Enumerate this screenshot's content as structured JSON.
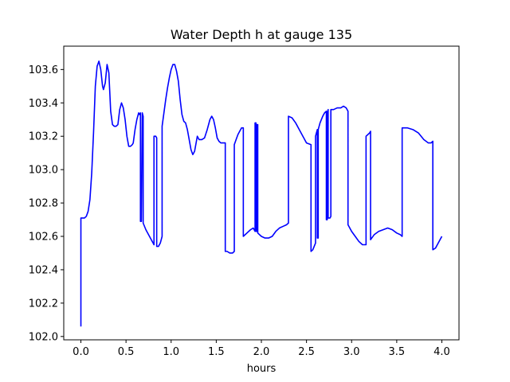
{
  "chart_data": {
    "type": "line",
    "title": "Water Depth h at gauge 135",
    "xlabel": "hours",
    "ylabel": "",
    "xlim": [
      -0.19,
      4.19
    ],
    "ylim": [
      101.98,
      103.74
    ],
    "xticks": [
      0.0,
      0.5,
      1.0,
      1.5,
      2.0,
      2.5,
      3.0,
      3.5,
      4.0
    ],
    "yticks": [
      102.0,
      102.2,
      102.4,
      102.6,
      102.8,
      103.0,
      103.2,
      103.4,
      103.6
    ],
    "xtick_labels": [
      "0.0",
      "0.5",
      "1.0",
      "1.5",
      "2.0",
      "2.5",
      "3.0",
      "3.5",
      "4.0"
    ],
    "ytick_labels": [
      "102.0",
      "102.2",
      "102.4",
      "102.6",
      "102.8",
      "103.0",
      "103.2",
      "103.4",
      "103.6"
    ],
    "grid": false,
    "legend": "none",
    "series": [
      {
        "color": "#0000ff",
        "points": [
          [
            0.0,
            102.06
          ],
          [
            0.0,
            102.71
          ],
          [
            0.02,
            102.71
          ],
          [
            0.04,
            102.71
          ],
          [
            0.06,
            102.72
          ],
          [
            0.08,
            102.75
          ],
          [
            0.1,
            102.82
          ],
          [
            0.12,
            102.98
          ],
          [
            0.14,
            103.22
          ],
          [
            0.16,
            103.5
          ],
          [
            0.18,
            103.62
          ],
          [
            0.2,
            103.65
          ],
          [
            0.22,
            103.6
          ],
          [
            0.24,
            103.5
          ],
          [
            0.25,
            103.48
          ],
          [
            0.27,
            103.52
          ],
          [
            0.29,
            103.63
          ],
          [
            0.31,
            103.58
          ],
          [
            0.33,
            103.35
          ],
          [
            0.35,
            103.27
          ],
          [
            0.37,
            103.26
          ],
          [
            0.39,
            103.26
          ],
          [
            0.41,
            103.27
          ],
          [
            0.43,
            103.36
          ],
          [
            0.45,
            103.4
          ],
          [
            0.47,
            103.37
          ],
          [
            0.49,
            103.3
          ],
          [
            0.51,
            103.2
          ],
          [
            0.53,
            103.14
          ],
          [
            0.55,
            103.14
          ],
          [
            0.57,
            103.15
          ],
          [
            0.58,
            103.16
          ],
          [
            0.58,
            103.16
          ],
          [
            0.6,
            103.24
          ],
          [
            0.62,
            103.3
          ],
          [
            0.64,
            103.34
          ],
          [
            0.65,
            103.33
          ],
          [
            0.66,
            103.34
          ],
          [
            0.66,
            102.69
          ],
          [
            0.67,
            102.69
          ],
          [
            0.68,
            103.34
          ],
          [
            0.69,
            103.32
          ],
          [
            0.69,
            102.68
          ],
          [
            0.72,
            102.64
          ],
          [
            0.76,
            102.6
          ],
          [
            0.8,
            102.56
          ],
          [
            0.81,
            102.55
          ],
          [
            0.81,
            103.2
          ],
          [
            0.83,
            103.2
          ],
          [
            0.84,
            103.19
          ],
          [
            0.84,
            102.54
          ],
          [
            0.86,
            102.54
          ],
          [
            0.88,
            102.56
          ],
          [
            0.9,
            102.6
          ],
          [
            0.9,
            103.26
          ],
          [
            0.92,
            103.34
          ],
          [
            0.94,
            103.42
          ],
          [
            0.96,
            103.49
          ],
          [
            0.98,
            103.55
          ],
          [
            1.0,
            103.6
          ],
          [
            1.02,
            103.63
          ],
          [
            1.04,
            103.63
          ],
          [
            1.06,
            103.59
          ],
          [
            1.08,
            103.53
          ],
          [
            1.1,
            103.42
          ],
          [
            1.12,
            103.33
          ],
          [
            1.14,
            103.29
          ],
          [
            1.16,
            103.28
          ],
          [
            1.18,
            103.24
          ],
          [
            1.2,
            103.18
          ],
          [
            1.22,
            103.12
          ],
          [
            1.24,
            103.09
          ],
          [
            1.26,
            103.11
          ],
          [
            1.28,
            103.17
          ],
          [
            1.29,
            103.2
          ],
          [
            1.31,
            103.18
          ],
          [
            1.34,
            103.18
          ],
          [
            1.37,
            103.19
          ],
          [
            1.4,
            103.24
          ],
          [
            1.43,
            103.3
          ],
          [
            1.45,
            103.32
          ],
          [
            1.47,
            103.3
          ],
          [
            1.49,
            103.25
          ],
          [
            1.51,
            103.19
          ],
          [
            1.53,
            103.17
          ],
          [
            1.55,
            103.16
          ],
          [
            1.58,
            103.16
          ],
          [
            1.6,
            103.16
          ],
          [
            1.6,
            102.51
          ],
          [
            1.62,
            102.51
          ],
          [
            1.65,
            102.5
          ],
          [
            1.68,
            102.5
          ],
          [
            1.7,
            102.51
          ],
          [
            1.7,
            103.15
          ],
          [
            1.72,
            103.18
          ],
          [
            1.74,
            103.21
          ],
          [
            1.76,
            103.23
          ],
          [
            1.78,
            103.25
          ],
          [
            1.8,
            103.25
          ],
          [
            1.8,
            102.6
          ],
          [
            1.84,
            102.62
          ],
          [
            1.88,
            102.64
          ],
          [
            1.91,
            102.65
          ],
          [
            1.93,
            102.63
          ],
          [
            1.93,
            103.28
          ],
          [
            1.94,
            103.28
          ],
          [
            1.94,
            102.63
          ],
          [
            1.95,
            102.63
          ],
          [
            1.95,
            103.27
          ],
          [
            1.96,
            103.27
          ],
          [
            1.96,
            102.62
          ],
          [
            2.0,
            102.6
          ],
          [
            2.04,
            102.59
          ],
          [
            2.08,
            102.59
          ],
          [
            2.12,
            102.6
          ],
          [
            2.16,
            102.63
          ],
          [
            2.2,
            102.65
          ],
          [
            2.24,
            102.66
          ],
          [
            2.28,
            102.67
          ],
          [
            2.3,
            102.68
          ],
          [
            2.3,
            103.32
          ],
          [
            2.34,
            103.31
          ],
          [
            2.38,
            103.28
          ],
          [
            2.42,
            103.24
          ],
          [
            2.46,
            103.2
          ],
          [
            2.5,
            103.16
          ],
          [
            2.55,
            103.15
          ],
          [
            2.55,
            102.51
          ],
          [
            2.57,
            102.52
          ],
          [
            2.6,
            102.56
          ],
          [
            2.6,
            103.2
          ],
          [
            2.61,
            103.22
          ],
          [
            2.62,
            103.24
          ],
          [
            2.62,
            102.59
          ],
          [
            2.63,
            102.59
          ],
          [
            2.63,
            103.24
          ],
          [
            2.65,
            103.28
          ],
          [
            2.68,
            103.32
          ],
          [
            2.7,
            103.34
          ],
          [
            2.72,
            103.35
          ],
          [
            2.72,
            102.7
          ],
          [
            2.73,
            102.7
          ],
          [
            2.73,
            103.34
          ],
          [
            2.74,
            103.36
          ],
          [
            2.74,
            102.71
          ],
          [
            2.76,
            102.71
          ],
          [
            2.77,
            102.72
          ],
          [
            2.77,
            103.36
          ],
          [
            2.8,
            103.36
          ],
          [
            2.84,
            103.37
          ],
          [
            2.88,
            103.37
          ],
          [
            2.91,
            103.38
          ],
          [
            2.94,
            103.37
          ],
          [
            2.96,
            103.35
          ],
          [
            2.96,
            102.67
          ],
          [
            3.0,
            102.63
          ],
          [
            3.04,
            102.6
          ],
          [
            3.08,
            102.57
          ],
          [
            3.12,
            102.55
          ],
          [
            3.16,
            102.55
          ],
          [
            3.16,
            103.2
          ],
          [
            3.18,
            103.21
          ],
          [
            3.2,
            103.22
          ],
          [
            3.21,
            103.23
          ],
          [
            3.21,
            102.58
          ],
          [
            3.25,
            102.61
          ],
          [
            3.3,
            102.63
          ],
          [
            3.35,
            102.64
          ],
          [
            3.4,
            102.65
          ],
          [
            3.45,
            102.64
          ],
          [
            3.5,
            102.62
          ],
          [
            3.54,
            102.61
          ],
          [
            3.56,
            102.6
          ],
          [
            3.56,
            103.25
          ],
          [
            3.62,
            103.25
          ],
          [
            3.68,
            103.24
          ],
          [
            3.74,
            103.22
          ],
          [
            3.8,
            103.18
          ],
          [
            3.85,
            103.16
          ],
          [
            3.88,
            103.16
          ],
          [
            3.9,
            103.17
          ],
          [
            3.9,
            102.52
          ],
          [
            3.93,
            102.53
          ],
          [
            3.96,
            102.56
          ],
          [
            4.0,
            102.6
          ]
        ]
      }
    ]
  }
}
